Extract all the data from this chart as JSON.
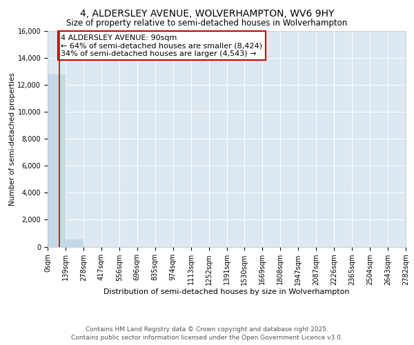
{
  "title": "4, ALDERSLEY AVENUE, WOLVERHAMPTON, WV6 9HY",
  "subtitle": "Size of property relative to semi-detached houses in Wolverhampton",
  "xlabel": "Distribution of semi-detached houses by size in Wolverhampton",
  "ylabel": "Number of semi-detached properties",
  "property_size": 90,
  "property_label": "4 ALDERSLEY AVENUE: 90sqm",
  "pct_smaller": 64,
  "pct_smaller_count": "8,424",
  "pct_larger": 34,
  "pct_larger_count": "4,543",
  "ylim": [
    0,
    16000
  ],
  "bar_color": "#c5d8e8",
  "bar_edge_color": "#c5d8e8",
  "line_color": "#cc0000",
  "annotation_box_color": "#cc0000",
  "background_color": "#dce8f2",
  "grid_color": "#ffffff",
  "footer1": "Contains HM Land Registry data © Crown copyright and database right 2025.",
  "footer2": "Contains public sector information licensed under the Open Government Licence v3.0.",
  "bin_edges": [
    0,
    139,
    278,
    417,
    556,
    696,
    835,
    974,
    1113,
    1252,
    1391,
    1530,
    1669,
    1808,
    1947,
    2087,
    2226,
    2365,
    2504,
    2643,
    2782
  ],
  "bin_heights": [
    12800,
    520,
    0,
    0,
    0,
    0,
    0,
    0,
    0,
    0,
    0,
    0,
    0,
    0,
    0,
    0,
    0,
    0,
    0,
    0
  ],
  "title_fontsize": 10,
  "subtitle_fontsize": 8.5,
  "tick_fontsize": 7,
  "ylabel_fontsize": 7.5,
  "xlabel_fontsize": 8,
  "footer_fontsize": 6.5,
  "ann_fontsize": 8
}
